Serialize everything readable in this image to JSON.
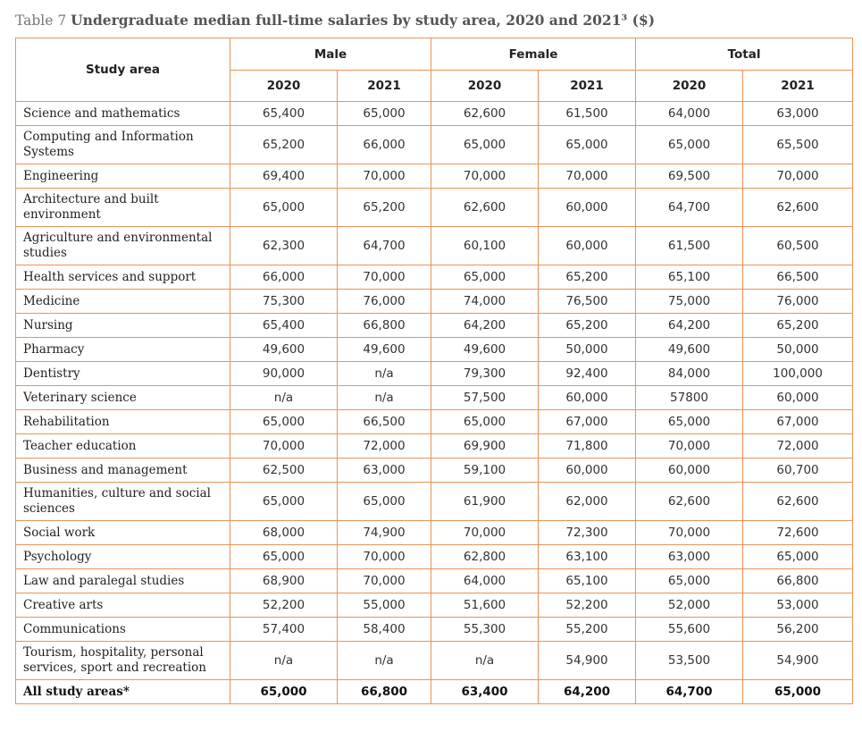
{
  "caption": {
    "prefix": "Table 7",
    "title": "Undergraduate median full-time salaries by study area, 2020 and 2021³ ($)"
  },
  "header": {
    "study_area": "Study area",
    "groups": [
      "Male",
      "Female",
      "Total"
    ],
    "years": [
      "2020",
      "2021",
      "2020",
      "2021",
      "2020",
      "2021"
    ]
  },
  "rows": [
    {
      "area": "Science and mathematics",
      "values": [
        "65,400",
        "65,000",
        "62,600",
        "61,500",
        "64,000",
        "63,000"
      ]
    },
    {
      "area": "Computing and Information Systems",
      "values": [
        "65,200",
        "66,000",
        "65,000",
        "65,000",
        "65,000",
        "65,500"
      ]
    },
    {
      "area": "Engineering",
      "values": [
        "69,400",
        "70,000",
        "70,000",
        "70,000",
        "69,500",
        "70,000"
      ]
    },
    {
      "area": "Architecture and built environment",
      "values": [
        "65,000",
        "65,200",
        "62,600",
        "60,000",
        "64,700",
        "62,600"
      ]
    },
    {
      "area": "Agriculture and environmental studies",
      "values": [
        "62,300",
        "64,700",
        "60,100",
        "60,000",
        "61,500",
        "60,500"
      ]
    },
    {
      "area": "Health services and support",
      "values": [
        "66,000",
        "70,000",
        "65,000",
        "65,200",
        "65,100",
        "66,500"
      ]
    },
    {
      "area": "Medicine",
      "values": [
        "75,300",
        "76,000",
        "74,000",
        "76,500",
        "75,000",
        "76,000"
      ]
    },
    {
      "area": "Nursing",
      "values": [
        "65,400",
        "66,800",
        "64,200",
        "65,200",
        "64,200",
        "65,200"
      ]
    },
    {
      "area": "Pharmacy",
      "values": [
        "49,600",
        "49,600",
        "49,600",
        "50,000",
        "49,600",
        "50,000"
      ]
    },
    {
      "area": "Dentistry",
      "values": [
        "90,000",
        "n/a",
        "79,300",
        "92,400",
        "84,000",
        "100,000"
      ]
    },
    {
      "area": "Veterinary science",
      "values": [
        "n/a",
        "n/a",
        "57,500",
        "60,000",
        "57800",
        "60,000"
      ]
    },
    {
      "area": "Rehabilitation",
      "values": [
        "65,000",
        "66,500",
        "65,000",
        "67,000",
        "65,000",
        "67,000"
      ]
    },
    {
      "area": "Teacher education",
      "values": [
        "70,000",
        "72,000",
        "69,900",
        "71,800",
        "70,000",
        "72,000"
      ]
    },
    {
      "area": "Business and management",
      "values": [
        "62,500",
        "63,000",
        "59,100",
        "60,000",
        "60,000",
        "60,700"
      ]
    },
    {
      "area": "Humanities, culture and social sciences",
      "values": [
        "65,000",
        "65,000",
        "61,900",
        "62,000",
        "62,600",
        "62,600"
      ]
    },
    {
      "area": "Social work",
      "values": [
        "68,000",
        "74,900",
        "70,000",
        "72,300",
        "70,000",
        "72,600"
      ]
    },
    {
      "area": "Psychology",
      "values": [
        "65,000",
        "70,000",
        "62,800",
        "63,100",
        "63,000",
        "65,000"
      ]
    },
    {
      "area": "Law and paralegal studies",
      "values": [
        "68,900",
        "70,000",
        "64,000",
        "65,100",
        "65,000",
        "66,800"
      ]
    },
    {
      "area": "Creative arts",
      "values": [
        "52,200",
        "55,000",
        "51,600",
        "52,200",
        "52,000",
        "53,000"
      ]
    },
    {
      "area": "Communications",
      "values": [
        "57,400",
        "58,400",
        "55,300",
        "55,200",
        "55,600",
        "56,200"
      ]
    },
    {
      "area": "Tourism, hospitality, personal services, sport and recreation",
      "values": [
        "n/a",
        "n/a",
        "n/a",
        "54,900",
        "53,500",
        "54,900"
      ]
    }
  ],
  "total_row": {
    "area": "All study areas*",
    "values": [
      "65,000",
      "66,800",
      "63,400",
      "64,200",
      "64,700",
      "65,000"
    ]
  }
}
